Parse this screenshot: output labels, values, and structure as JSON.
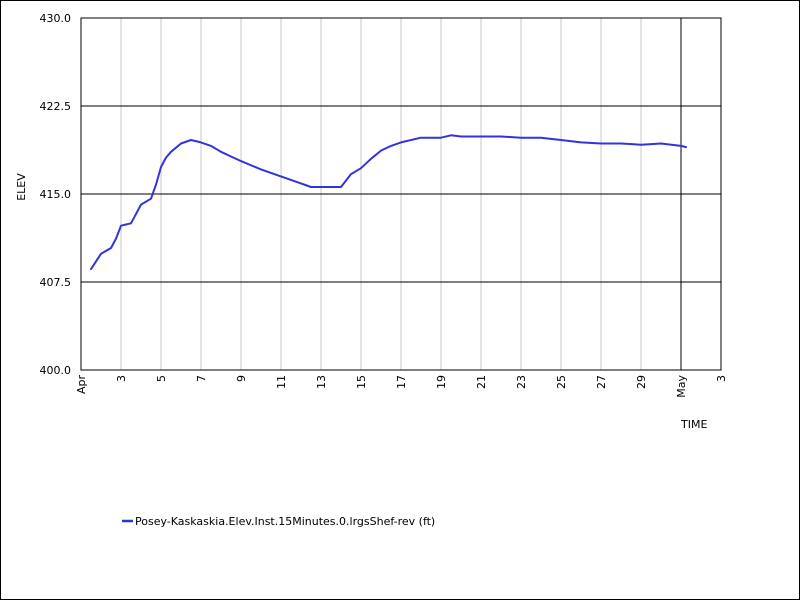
{
  "chart_data": {
    "type": "line",
    "ylabel": "ELEV",
    "xlabel": "TIME",
    "ylim": [
      400.0,
      430.0
    ],
    "yticks": [
      "400.0",
      "407.5",
      "415.0",
      "422.5",
      "430.0"
    ],
    "xlim": [
      "2020-04-01",
      "2020-05-03"
    ],
    "xticks": [
      {
        "date": "2020-04-01",
        "label": "Apr"
      },
      {
        "date": "2020-04-03",
        "label": "3"
      },
      {
        "date": "2020-04-05",
        "label": "5"
      },
      {
        "date": "2020-04-07",
        "label": "7"
      },
      {
        "date": "2020-04-09",
        "label": "9"
      },
      {
        "date": "2020-04-11",
        "label": "11"
      },
      {
        "date": "2020-04-13",
        "label": "13"
      },
      {
        "date": "2020-04-15",
        "label": "15"
      },
      {
        "date": "2020-04-17",
        "label": "17"
      },
      {
        "date": "2020-04-19",
        "label": "19"
      },
      {
        "date": "2020-04-21",
        "label": "21"
      },
      {
        "date": "2020-04-23",
        "label": "23"
      },
      {
        "date": "2020-04-25",
        "label": "25"
      },
      {
        "date": "2020-04-27",
        "label": "27"
      },
      {
        "date": "2020-04-29",
        "label": "29"
      },
      {
        "date": "2020-05-01",
        "label": "May"
      },
      {
        "date": "2020-05-03",
        "label": "3"
      }
    ],
    "grid": true,
    "legend_position": "bottom-left",
    "series": [
      {
        "name": "Posey-Kaskaskia.Elev.Inst.15Minutes.0.lrgsShef-rev (ft)",
        "color": "#3333dd",
        "x": [
          "2020-04-01 12:00",
          "2020-04-02 00:00",
          "2020-04-02 12:00",
          "2020-04-02 18:00",
          "2020-04-03 00:00",
          "2020-04-03 06:00",
          "2020-04-03 12:00",
          "2020-04-04 00:00",
          "2020-04-04 12:00",
          "2020-04-04 18:00",
          "2020-04-05 00:00",
          "2020-04-05 06:00",
          "2020-04-05 12:00",
          "2020-04-06 00:00",
          "2020-04-06 12:00",
          "2020-04-07 00:00",
          "2020-04-07 12:00",
          "2020-04-08 00:00",
          "2020-04-08 12:00",
          "2020-04-09 00:00",
          "2020-04-10 00:00",
          "2020-04-11 00:00",
          "2020-04-12 00:00",
          "2020-04-12 12:00",
          "2020-04-13 00:00",
          "2020-04-13 12:00",
          "2020-04-14 00:00",
          "2020-04-14 12:00",
          "2020-04-15 00:00",
          "2020-04-15 12:00",
          "2020-04-16 00:00",
          "2020-04-16 12:00",
          "2020-04-17 00:00",
          "2020-04-18 00:00",
          "2020-04-19 00:00",
          "2020-04-19 12:00",
          "2020-04-20 00:00",
          "2020-04-21 00:00",
          "2020-04-22 00:00",
          "2020-04-23 00:00",
          "2020-04-24 00:00",
          "2020-04-25 00:00",
          "2020-04-26 00:00",
          "2020-04-27 00:00",
          "2020-04-28 00:00",
          "2020-04-29 00:00",
          "2020-04-30 00:00",
          "2020-05-01 00:00",
          "2020-05-01 06:00"
        ],
        "y": [
          408.6,
          409.9,
          410.4,
          411.2,
          412.3,
          412.4,
          412.5,
          414.1,
          414.6,
          415.8,
          417.3,
          418.1,
          418.6,
          419.3,
          419.6,
          419.4,
          419.1,
          418.6,
          418.2,
          417.8,
          417.1,
          416.5,
          415.9,
          415.6,
          415.6,
          415.6,
          415.6,
          416.7,
          417.2,
          418.0,
          418.7,
          419.1,
          419.4,
          419.8,
          419.8,
          420.0,
          419.9,
          419.9,
          419.9,
          419.8,
          419.8,
          419.6,
          419.4,
          419.3,
          419.3,
          419.2,
          419.3,
          419.1,
          419.0
        ]
      }
    ]
  }
}
